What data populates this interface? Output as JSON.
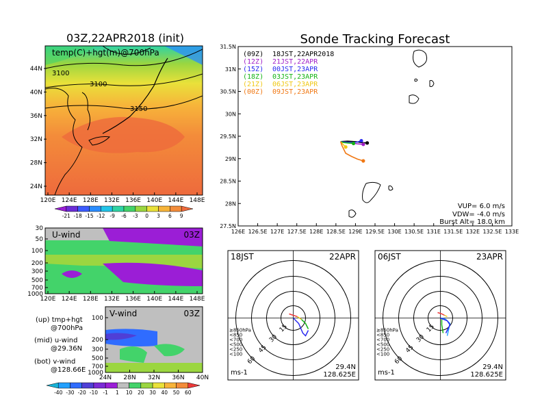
{
  "titles": {
    "init": "03Z,22APR2018 (init)",
    "main": "Sonde Tracking Forecast"
  },
  "temp_panel": {
    "label": "temp(C)+hgt(m)@700hPa",
    "contour_labels": [
      "3100",
      "3100",
      "3150"
    ],
    "lat_ticks": [
      "44N",
      "40N",
      "36N",
      "32N",
      "28N",
      "24N"
    ],
    "lon_ticks": [
      "120E",
      "124E",
      "128E",
      "132E",
      "136E",
      "140E",
      "144E",
      "148E"
    ],
    "colorbar_ticks": [
      "-21",
      "-18",
      "-15",
      "-12",
      "-9",
      "-6",
      "-3",
      "0",
      "3",
      "6",
      "9"
    ],
    "colorbar_colors": [
      "#9b1ed6",
      "#6b2dd6",
      "#3c5bff",
      "#2a8cff",
      "#22c4e8",
      "#2fd3a4",
      "#43d36a",
      "#9bd640",
      "#e9e13a",
      "#f7b43a",
      "#f38c3a",
      "#ee6a3c"
    ]
  },
  "uwind_panel": {
    "label": "U-wind",
    "time": "03Z",
    "p_ticks": [
      "30",
      "50",
      "100",
      "200",
      "300",
      "500",
      "700",
      "1000"
    ],
    "lon_ticks": [
      "120E",
      "124E",
      "128E",
      "132E",
      "136E",
      "140E",
      "144E",
      "148E"
    ]
  },
  "vwind_panel": {
    "label": "V-wind",
    "time": "03Z",
    "p_ticks": [
      "100",
      "200",
      "300",
      "500",
      "700",
      "1000"
    ],
    "lat_ticks": [
      "24N",
      "28N",
      "32N",
      "36N",
      "40N"
    ]
  },
  "panel_legend": [
    {
      "pos": "(up)",
      "text": "tmp+hgt",
      "sub": "@700hPa"
    },
    {
      "pos": "(mid)",
      "text": "u-wind",
      "sub": "@29.36N"
    },
    {
      "pos": "(bot)",
      "text": "v-wind",
      "sub": "@128.66E"
    }
  ],
  "wind_colorbar": {
    "ticks": [
      "-40",
      "-30",
      "-20",
      "-10",
      "-1",
      "1",
      "10",
      "20",
      "30",
      "40",
      "50",
      "60"
    ],
    "colors": [
      "#19b3d6",
      "#22a0ff",
      "#2f6cff",
      "#4f3fd6",
      "#7b2ad6",
      "#9b1ed6",
      "#bfbfbf",
      "#43d36a",
      "#9bd640",
      "#e9e13a",
      "#f7b43a",
      "#f38c3a",
      "#ee3a3a"
    ]
  },
  "track_legend": [
    {
      "utc": "(09Z)",
      "jst": "18JST,22APR2018",
      "color": "#000000"
    },
    {
      "utc": "(12Z)",
      "jst": "21JST,22APR",
      "color": "#a01ec8"
    },
    {
      "utc": "(15Z)",
      "jst": "00JST,23APR",
      "color": "#2828f0"
    },
    {
      "utc": "(18Z)",
      "jst": "03JST,23APR",
      "color": "#14b414"
    },
    {
      "utc": "(21Z)",
      "jst": "06JST,23APR",
      "color": "#f0c814"
    },
    {
      "utc": "(00Z)",
      "jst": "09JST,23APR",
      "color": "#f07814"
    }
  ],
  "track_info": {
    "vup": "VUP= 6.0 m/s",
    "vdw": "VDW= -4.0 m/s",
    "burst": "Burst Alt= 18.0 km"
  },
  "hodo_left": {
    "time": "18JST",
    "date": "22APR",
    "lat": "29.4N",
    "lon": "128.625E",
    "unit": "ms-1"
  },
  "hodo_right": {
    "time": "06JST",
    "date": "23APR",
    "lat": "29.4N",
    "lon": "128.625E",
    "unit": "ms-1"
  },
  "hodo_ring_labels": [
    "15",
    "30",
    "45",
    "60"
  ],
  "hodo_legend": [
    {
      "text": "≥850hPa",
      "color": "#ee3a3a"
    },
    {
      "text": "<850",
      "color": "#f0c814"
    },
    {
      "text": "<700",
      "color": "#f7b43a"
    },
    {
      "text": "<500",
      "color": "#14b414"
    },
    {
      "text": "<250",
      "color": "#22a0ff"
    },
    {
      "text": "<100",
      "color": "#2828f0"
    }
  ],
  "chart_data": {
    "type": "line",
    "title": "Sonde Tracking Forecast",
    "xlabel": "",
    "ylabel": "",
    "x_ticks": [
      "126E",
      "126.5E",
      "127E",
      "127.5E",
      "128E",
      "128.5E",
      "129E",
      "129.5E",
      "130E",
      "130.5E",
      "131E",
      "131.5E",
      "132E",
      "132.5E",
      "133E"
    ],
    "y_ticks": [
      "27.5N",
      "28N",
      "28.5N",
      "29N",
      "29.5N",
      "30N",
      "30.5N",
      "31N",
      "31.5N"
    ],
    "xlim": [
      126,
      133
    ],
    "ylim": [
      27.5,
      31.5
    ],
    "series": [
      {
        "name": "(09Z) 18JST,22APR2018",
        "color": "#000000",
        "lon": [
          128.62,
          128.8,
          129.0,
          129.15,
          129.3
        ],
        "lat": [
          29.38,
          29.39,
          29.38,
          29.36,
          29.35
        ]
      },
      {
        "name": "(12Z) 21JST,22APR",
        "color": "#a01ec8",
        "lon": [
          128.62,
          128.75,
          128.9,
          129.05,
          129.2
        ],
        "lat": [
          29.38,
          29.37,
          29.35,
          29.33,
          29.32
        ]
      },
      {
        "name": "(15Z) 00JST,23APR",
        "color": "#2828f0",
        "lon": [
          128.62,
          128.75,
          128.9,
          129.05,
          129.15
        ],
        "lat": [
          29.38,
          29.37,
          29.36,
          29.37,
          29.4
        ]
      },
      {
        "name": "(18Z) 03JST,23APR",
        "color": "#14b414",
        "lon": [
          128.62,
          128.7,
          128.8,
          128.95
        ],
        "lat": [
          29.38,
          29.36,
          29.35,
          29.34
        ]
      },
      {
        "name": "(21Z) 06JST,23APR",
        "color": "#f0c814",
        "lon": [
          128.62,
          128.68,
          128.75
        ],
        "lat": [
          29.38,
          29.32,
          29.26
        ]
      },
      {
        "name": "(00Z) 09JST,23APR",
        "color": "#f07814",
        "lon": [
          128.62,
          128.65,
          128.75,
          128.9,
          129.05,
          129.2
        ],
        "lat": [
          29.38,
          29.3,
          29.12,
          29.05,
          28.99,
          28.95
        ]
      }
    ]
  }
}
